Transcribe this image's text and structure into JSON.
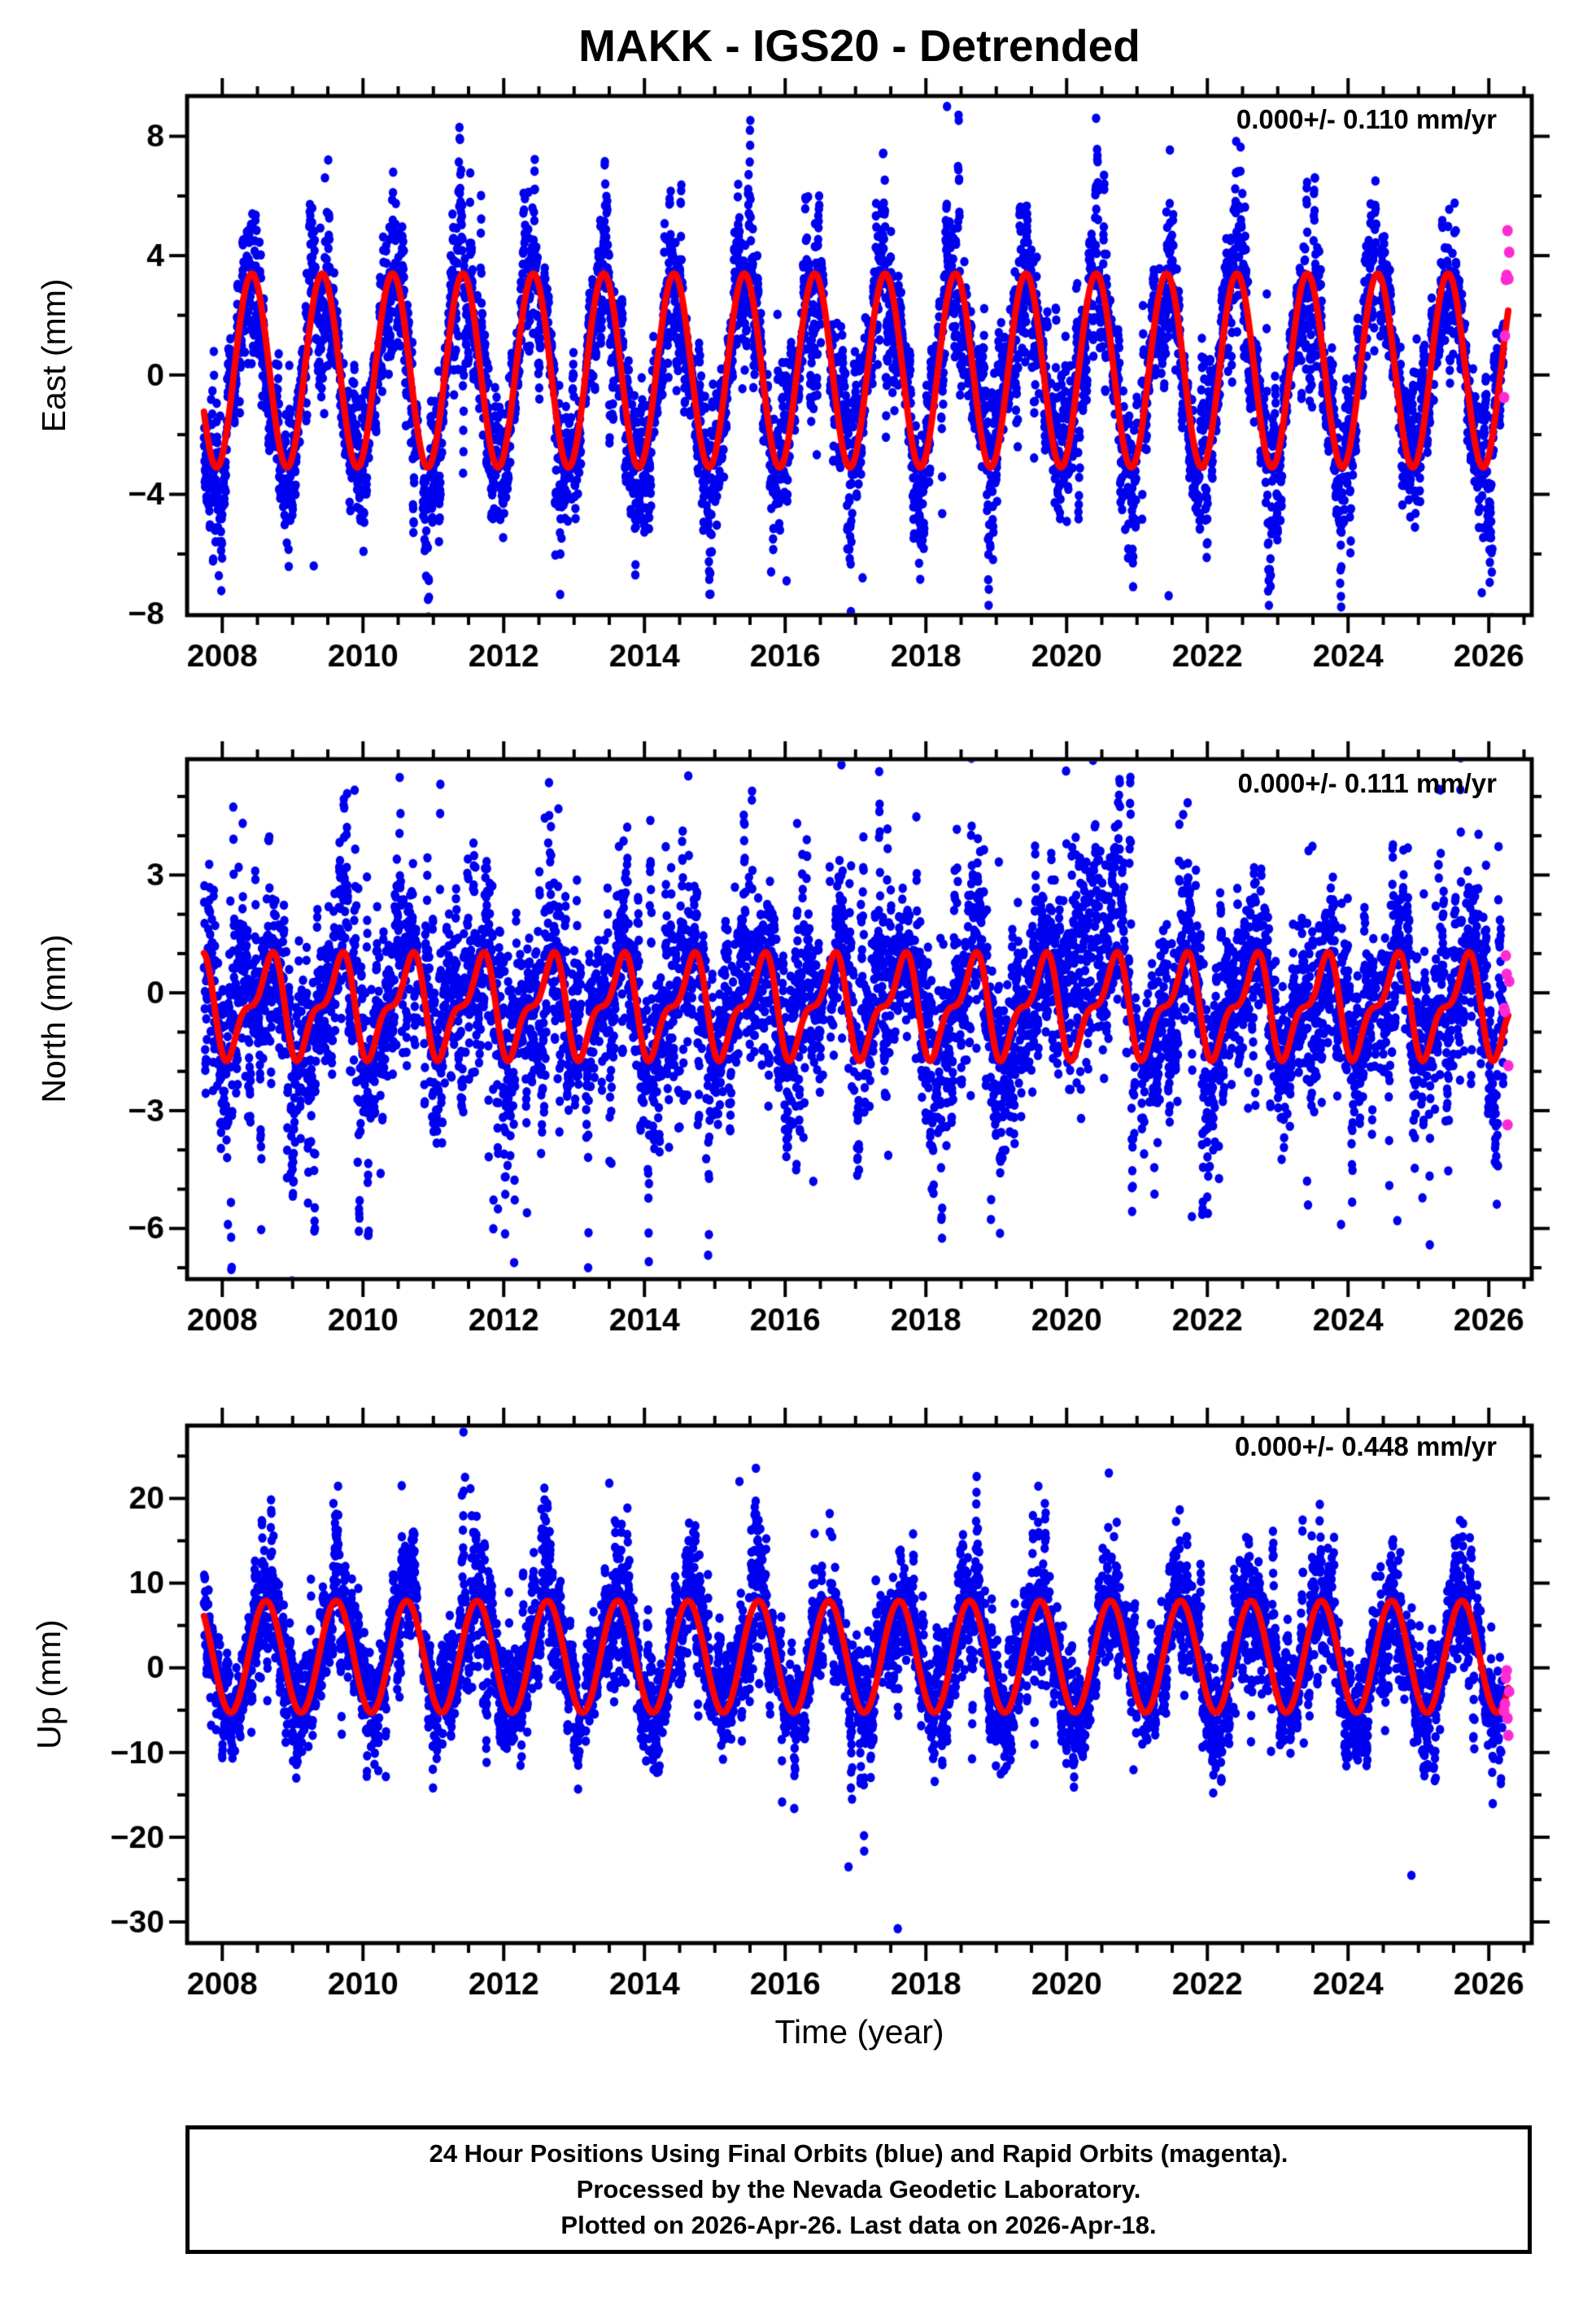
{
  "title": "MAKK - IGS20 - Detrended",
  "xlabel": "Time (year)",
  "footer": {
    "lines": [
      "24 Hour Positions Using Final Orbits (blue) and Rapid Orbits (magenta).",
      "Processed by the Nevada Geodetic Laboratory.",
      "Plotted on 2026-Apr-26. Last data on 2026-Apr-18."
    ]
  },
  "colors": {
    "final_orbit_blue": "#0000f0",
    "rapid_orbit_magenta": "#ff2ad4",
    "model_fit_red": "#ff0000",
    "frame_black": "#000000",
    "background": "#ffffff"
  },
  "chart_data": {
    "type": "scatter",
    "station": "MAKK",
    "reference_frame": "IGS20",
    "processing": "Detrended",
    "x": {
      "label": "Time (year)",
      "lim": [
        2007.5,
        2026.61
      ],
      "ticks": [
        2008,
        2010,
        2012,
        2014,
        2016,
        2018,
        2020,
        2022,
        2024,
        2026
      ],
      "minor_step": 0.5,
      "data_start": 2007.74,
      "data_end": 2026.215,
      "rapid_start": 2026.218,
      "rapid_end": 2026.29
    },
    "panels": [
      {
        "name": "East",
        "ylabel": "East (mm)",
        "annotation": "0.000+/- 0.110 mm/yr",
        "rate_mm_yr": 0.0,
        "rate_sigma_mm_yr": 0.11,
        "yticks": [
          8,
          4,
          0,
          -4,
          -8
        ],
        "y_minor_step": 2,
        "ylim": [
          -8.05,
          9.35
        ],
        "seasonal": {
          "mean": 0.15,
          "annual_amp": 3.25,
          "annual_peak": 2008.42,
          "semiannual_sin_amp": 0.0
        },
        "noise": {
          "sd": 0.8,
          "season_mult": 0.45,
          "ar": 0.78,
          "burst_mult": 2.4,
          "burst_prob": 0.012
        },
        "outliers": [
          [
            2018.3,
            9.0
          ],
          [
            2016.02,
            -6.9
          ],
          [
            2021.45,
            -7.4
          ],
          [
            2017.1,
            -6.8
          ],
          [
            2025.9,
            -7.3
          ],
          [
            2009.3,
            -6.4
          ],
          [
            2015.8,
            -6.6
          ]
        ]
      },
      {
        "name": "North",
        "ylabel": "North (mm)",
        "annotation": "0.000+/- 0.111 mm/yr",
        "rate_mm_yr": 0.0,
        "rate_sigma_mm_yr": 0.111,
        "yticks": [
          3,
          0,
          -3,
          -6
        ],
        "y_minor_step": 1,
        "ylim": [
          -7.29,
          5.95
        ],
        "seasonal": {
          "mean": -0.35,
          "annual_amp": 1.1,
          "annual_peak": 2008.64,
          "semiannual_sin_amp": 0.5
        },
        "noise": {
          "sd": 1.25,
          "season_mult": 0.0,
          "ar": 0.72,
          "burst_mult": 2.2,
          "burst_prob": 0.012
        },
        "cloud": {
          "t": 2020.3,
          "amp": 1.7,
          "sigma": 0.45,
          "sd_gain": 0.9
        },
        "outliers": [
          [
            2013.2,
            -7.0
          ],
          [
            2008.08,
            -5.9
          ],
          [
            2012.33,
            -5.6
          ],
          [
            2021.78,
            -5.7
          ],
          [
            2023.9,
            -5.9
          ],
          [
            2016.4,
            -4.8
          ],
          [
            2010.25,
            -4.6
          ],
          [
            2024.7,
            -5.8
          ]
        ]
      },
      {
        "name": "Up",
        "ylabel": "Up (mm)",
        "annotation": "0.000+/- 0.448 mm/yr",
        "rate_mm_yr": 0.0,
        "rate_sigma_mm_yr": 0.448,
        "yticks": [
          20,
          10,
          0,
          -10,
          -20,
          -30
        ],
        "y_minor_step": 5,
        "ylim": [
          -32.5,
          28.6
        ],
        "seasonal": {
          "mean": 1.3,
          "annual_amp": 6.6,
          "annual_peak": 2008.62,
          "semiannual_sin_amp": 0.0
        },
        "noise": {
          "sd": 2.9,
          "season_mult": 0.5,
          "ar": 0.74,
          "burst_mult": 2.2,
          "burst_prob": 0.012
        },
        "outliers": [
          [
            2017.6,
            -30.8
          ],
          [
            2024.9,
            -24.5
          ],
          [
            2016.9,
            -23.5
          ],
          [
            2020.6,
            23.0
          ],
          [
            2011.45,
            22.5
          ],
          [
            2013.5,
            21.8
          ],
          [
            2015.35,
            22.0
          ],
          [
            2010.55,
            21.5
          ]
        ]
      }
    ],
    "gaps": [
      [
        2010.78,
        2010.85
      ],
      [
        2013.1,
        2013.16
      ],
      [
        2016.55,
        2016.63
      ],
      [
        2021.0,
        2021.06
      ],
      [
        2024.4,
        2024.45
      ]
    ]
  }
}
